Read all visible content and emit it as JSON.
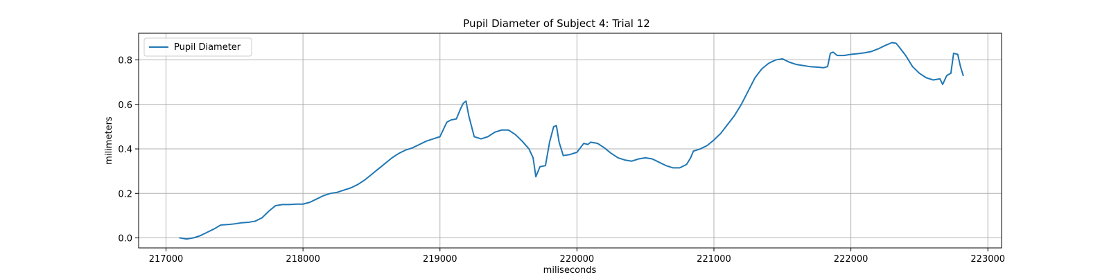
{
  "chart_data": {
    "type": "line",
    "title": "Pupil Diameter of Subject 4: Trial 12",
    "xlabel": "miliseconds",
    "ylabel": "milimeters",
    "xlim": [
      216800,
      223100
    ],
    "ylim": [
      -0.045,
      0.92
    ],
    "xticks": [
      217000,
      218000,
      219000,
      220000,
      221000,
      222000,
      223000
    ],
    "yticks": [
      0.0,
      0.2,
      0.4,
      0.6,
      0.8
    ],
    "ytick_format": 1,
    "grid": true,
    "legend": {
      "placement": "top-left",
      "entries": [
        "Pupil Diameter"
      ]
    },
    "colors": {
      "line": "#1f77b4",
      "grid": "#b0b0b0",
      "spine": "#000000"
    },
    "series": [
      {
        "name": "Pupil Diameter",
        "x": [
          217100,
          217150,
          217200,
          217250,
          217300,
          217350,
          217400,
          217450,
          217500,
          217550,
          217600,
          217650,
          217700,
          217750,
          217800,
          217850,
          217900,
          217950,
          218000,
          218050,
          218100,
          218150,
          218200,
          218250,
          218300,
          218350,
          218400,
          218450,
          218500,
          218550,
          218600,
          218650,
          218700,
          218750,
          218800,
          218850,
          218900,
          218950,
          219000,
          219050,
          219080,
          219120,
          219150,
          219170,
          219190,
          219210,
          219250,
          219300,
          219350,
          219400,
          219450,
          219500,
          219550,
          219600,
          219650,
          219680,
          219700,
          219730,
          219770,
          219800,
          219830,
          219850,
          219870,
          219900,
          219950,
          220000,
          220050,
          220080,
          220100,
          220150,
          220200,
          220250,
          220300,
          220350,
          220400,
          220450,
          220500,
          220550,
          220600,
          220650,
          220700,
          220750,
          220800,
          220830,
          220850,
          220900,
          220950,
          221000,
          221050,
          221100,
          221150,
          221200,
          221250,
          221300,
          221350,
          221400,
          221450,
          221500,
          221550,
          221600,
          221650,
          221700,
          221750,
          221800,
          221830,
          221850,
          221870,
          221900,
          221950,
          222000,
          222050,
          222100,
          222150,
          222200,
          222250,
          222300,
          222330,
          222350,
          222400,
          222450,
          222500,
          222550,
          222600,
          222650,
          222670,
          222700,
          222730,
          222750,
          222780,
          222800,
          222820
        ],
        "y": [
          0.0,
          -0.005,
          0.0,
          0.01,
          0.025,
          0.04,
          0.058,
          0.06,
          0.063,
          0.068,
          0.07,
          0.075,
          0.09,
          0.12,
          0.145,
          0.15,
          0.15,
          0.152,
          0.152,
          0.16,
          0.175,
          0.19,
          0.2,
          0.205,
          0.215,
          0.225,
          0.24,
          0.26,
          0.285,
          0.31,
          0.335,
          0.36,
          0.38,
          0.395,
          0.405,
          0.42,
          0.435,
          0.445,
          0.455,
          0.52,
          0.53,
          0.535,
          0.58,
          0.605,
          0.615,
          0.55,
          0.455,
          0.445,
          0.455,
          0.475,
          0.485,
          0.485,
          0.465,
          0.435,
          0.4,
          0.36,
          0.275,
          0.32,
          0.325,
          0.43,
          0.5,
          0.505,
          0.43,
          0.37,
          0.375,
          0.385,
          0.425,
          0.42,
          0.43,
          0.425,
          0.405,
          0.38,
          0.36,
          0.35,
          0.345,
          0.355,
          0.36,
          0.355,
          0.34,
          0.325,
          0.315,
          0.315,
          0.33,
          0.36,
          0.39,
          0.4,
          0.415,
          0.44,
          0.47,
          0.51,
          0.55,
          0.6,
          0.66,
          0.72,
          0.76,
          0.785,
          0.8,
          0.805,
          0.79,
          0.78,
          0.775,
          0.77,
          0.768,
          0.765,
          0.77,
          0.83,
          0.835,
          0.82,
          0.82,
          0.825,
          0.828,
          0.832,
          0.838,
          0.85,
          0.865,
          0.878,
          0.875,
          0.86,
          0.82,
          0.77,
          0.74,
          0.72,
          0.71,
          0.715,
          0.69,
          0.73,
          0.74,
          0.83,
          0.825,
          0.77,
          0.73
        ]
      }
    ]
  }
}
